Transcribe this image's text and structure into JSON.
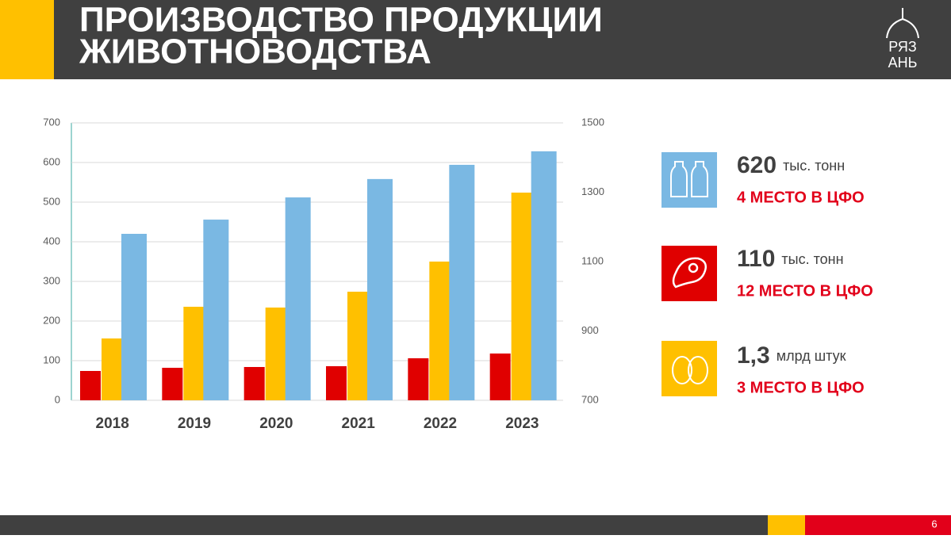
{
  "header": {
    "title_lines": [
      "ПРОИЗВОДСТВО ПРОДУКЦИИ",
      "ЖИВОТНОВОДСТВА"
    ]
  },
  "logo": {
    "lines": [
      "РЯЗ",
      "АНЬ"
    ]
  },
  "chart_data": {
    "type": "bar",
    "categories": [
      "2018",
      "2019",
      "2020",
      "2021",
      "2022",
      "2023"
    ],
    "series": [
      {
        "color": "#e00000",
        "values": [
          74,
          82,
          84,
          86,
          106,
          118
        ]
      },
      {
        "color": "#ffc000",
        "values": [
          156,
          236,
          234,
          274,
          350,
          524
        ]
      },
      {
        "color": "#7ab8e3",
        "axis": "y2",
        "values": [
          1180,
          1221,
          1285,
          1338,
          1379,
          1418
        ]
      }
    ],
    "ylim": [
      0,
      700
    ],
    "yticks": [
      0,
      100,
      200,
      300,
      400,
      500,
      600,
      700
    ],
    "y2lim": [
      700,
      1500
    ],
    "y2ticks": [
      700,
      900,
      1100,
      1300,
      1500
    ],
    "grid": true
  },
  "stats": [
    {
      "value": "620",
      "unit": "тыс. тонн",
      "rank": "4 МЕСТО В ЦФО"
    },
    {
      "value": "110",
      "unit": "тыс. тонн",
      "rank": "12 МЕСТО В ЦФО"
    },
    {
      "value": "1,3",
      "unit": "млрд штук",
      "rank": "3 МЕСТО В ЦФО"
    }
  ],
  "footer": {
    "page": "6"
  }
}
